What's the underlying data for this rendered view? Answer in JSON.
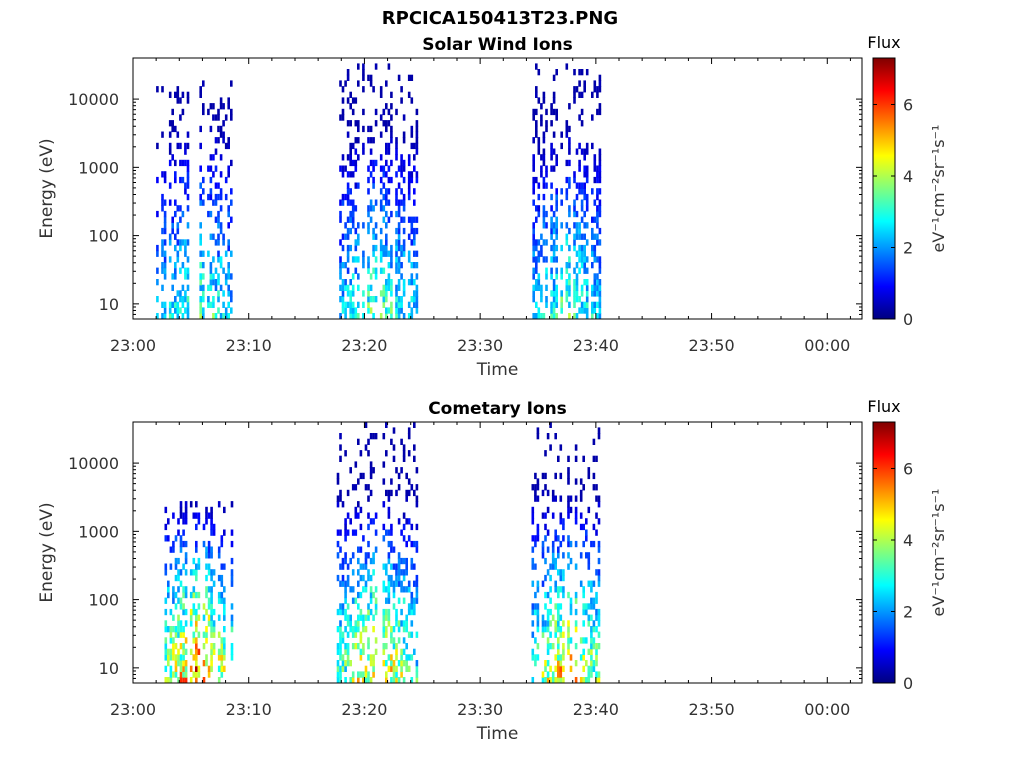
{
  "figure": {
    "title": "RPCICA150413T23.PNG"
  },
  "colormap": {
    "name": "jet",
    "stops": [
      "#00007f",
      "#0000ff",
      "#007fff",
      "#00ffff",
      "#7fff7f",
      "#ffff00",
      "#ff7f00",
      "#ff0000",
      "#7f0000"
    ]
  },
  "chart_data": [
    {
      "type": "heatmap",
      "title": "Solar Wind Ions",
      "xlabel": "Time",
      "ylabel": "Energy (eV)",
      "x_ticks": [
        "23:00",
        "23:10",
        "23:20",
        "23:30",
        "23:40",
        "23:50",
        "00:00"
      ],
      "x_range_minutes": [
        0,
        63
      ],
      "y_scale": "log",
      "y_range": [
        6,
        40000
      ],
      "y_ticks": [
        10,
        100,
        1000,
        10000
      ],
      "y_tick_labels": [
        "10",
        "100",
        "1000",
        "10000"
      ],
      "colorbar": {
        "title": "Flux",
        "label": "eV⁻¹cm⁻²sr⁻¹s⁻¹",
        "range": [
          0,
          7.3
        ],
        "ticks": [
          0,
          2,
          4,
          6
        ]
      },
      "bursts": [
        {
          "start_min": 2.0,
          "end_min": 8.5,
          "peak_time_min": 5.5,
          "energy_min": 6,
          "energy_max": 20000,
          "peak_energy": 12,
          "flux_peak": 3.3,
          "density": 0.5
        },
        {
          "start_min": 17.6,
          "end_min": 24.5,
          "peak_time_min": 21.0,
          "energy_min": 6,
          "energy_max": 35000,
          "peak_energy": 10,
          "flux_peak": 3.4,
          "density": 0.6
        },
        {
          "start_min": 34.3,
          "end_min": 40.3,
          "peak_time_min": 37.5,
          "energy_min": 6,
          "energy_max": 35000,
          "peak_energy": 10,
          "flux_peak": 3.4,
          "density": 0.6
        }
      ]
    },
    {
      "type": "heatmap",
      "title": "Cometary Ions",
      "xlabel": "Time",
      "ylabel": "Energy (eV)",
      "x_ticks": [
        "23:00",
        "23:10",
        "23:20",
        "23:30",
        "23:40",
        "23:50",
        "00:00"
      ],
      "x_range_minutes": [
        0,
        63
      ],
      "y_scale": "log",
      "y_range": [
        6,
        40000
      ],
      "y_ticks": [
        10,
        100,
        1000,
        10000
      ],
      "y_tick_labels": [
        "10",
        "100",
        "1000",
        "10000"
      ],
      "colorbar": {
        "title": "Flux",
        "label": "eV⁻¹cm⁻²sr⁻¹s⁻¹",
        "range": [
          0,
          7.3
        ],
        "ticks": [
          0,
          2,
          4,
          6
        ]
      },
      "bursts": [
        {
          "start_min": 2.5,
          "end_min": 8.5,
          "peak_time_min": 5.5,
          "energy_min": 6,
          "energy_max": 3000,
          "peak_energy": 8,
          "flux_peak": 6.0,
          "density": 0.55
        },
        {
          "start_min": 17.6,
          "end_min": 24.5,
          "peak_time_min": 21.0,
          "energy_min": 6,
          "energy_max": 40000,
          "peak_energy": 10,
          "flux_peak": 5.0,
          "density": 0.5
        },
        {
          "start_min": 34.0,
          "end_min": 40.3,
          "peak_time_min": 37.5,
          "energy_min": 6,
          "energy_max": 40000,
          "peak_energy": 10,
          "flux_peak": 5.0,
          "density": 0.5
        }
      ]
    }
  ]
}
